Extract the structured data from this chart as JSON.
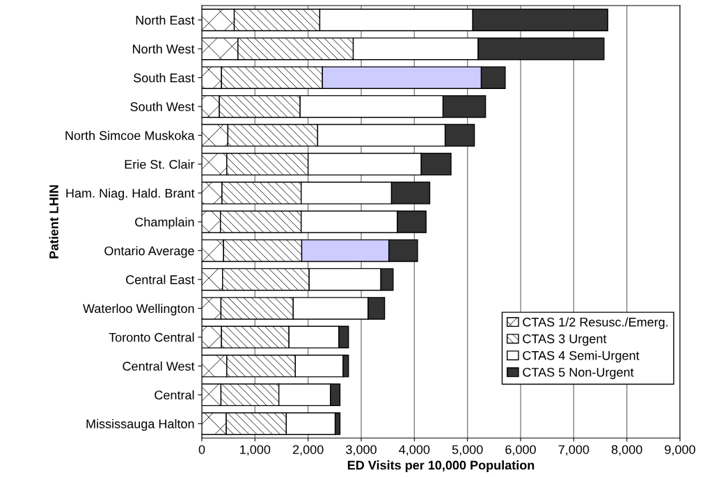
{
  "chart_data": {
    "type": "bar",
    "orientation": "horizontal",
    "stacked": true,
    "xlabel": "ED Visits per 10,000 Population",
    "ylabel": "Patient LHIN",
    "categories": [
      "North East",
      "North West",
      "South East",
      "South West",
      "North Simcoe Muskoka",
      "Erie St. Clair",
      "Ham. Niag. Hald. Brant",
      "Champlain",
      "Ontario Average",
      "Central East",
      "Waterloo Wellington",
      "Toronto Central",
      "Central West",
      "Central",
      "Mississauga Halton"
    ],
    "series": [
      {
        "name": "CTAS 1/2 Resusc./Emerg.",
        "color": "#ffffff",
        "values": [
          610,
          680,
          370,
          330,
          490,
          470,
          380,
          350,
          410,
          390,
          360,
          370,
          470,
          360,
          460
        ]
      },
      {
        "name": "CTAS 3 Urgent",
        "color": "#ffffff",
        "values": [
          1610,
          2170,
          1900,
          1520,
          1690,
          1530,
          1490,
          1520,
          1470,
          1630,
          1360,
          1270,
          1290,
          1090,
          1130
        ]
      },
      {
        "name": "CTAS 4 Semi-Urgent",
        "color": "#ffffff",
        "colors": [
          "#ffffff",
          "#ffffff",
          "#ccccff",
          "#ffffff",
          "#ffffff",
          "#ffffff",
          "#ffffff",
          "#ffffff",
          "#ccccff",
          "#ffffff",
          "#ffffff",
          "#ffffff",
          "#ffffff",
          "#ffffff",
          "#ffffff"
        ],
        "values": [
          2880,
          2350,
          2990,
          2690,
          2400,
          2130,
          1700,
          1810,
          1640,
          1350,
          1410,
          940,
          900,
          970,
          920
        ]
      },
      {
        "name": "CTAS 5 Non-Urgent",
        "color": "#333333",
        "values": [
          2540,
          2370,
          450,
          800,
          550,
          560,
          720,
          540,
          540,
          230,
          310,
          180,
          100,
          180,
          90
        ]
      }
    ],
    "xlim": [
      0,
      9000
    ],
    "xticks": [
      0,
      {
        "value": 1000,
        "label": "1,000"
      },
      {
        "value": 2000,
        "label": "2,000"
      },
      {
        "value": 3000,
        "label": "3,000"
      },
      {
        "value": 4000,
        "label": "4,000"
      },
      {
        "value": 5000,
        "label": "5,000"
      },
      {
        "value": 6000,
        "label": "6,000"
      },
      {
        "value": 7000,
        "label": "7,000"
      },
      {
        "value": 8000,
        "label": "8,000"
      },
      {
        "value": 9000,
        "label": "9,000"
      }
    ],
    "grid": "x",
    "legend": "bottom right"
  }
}
